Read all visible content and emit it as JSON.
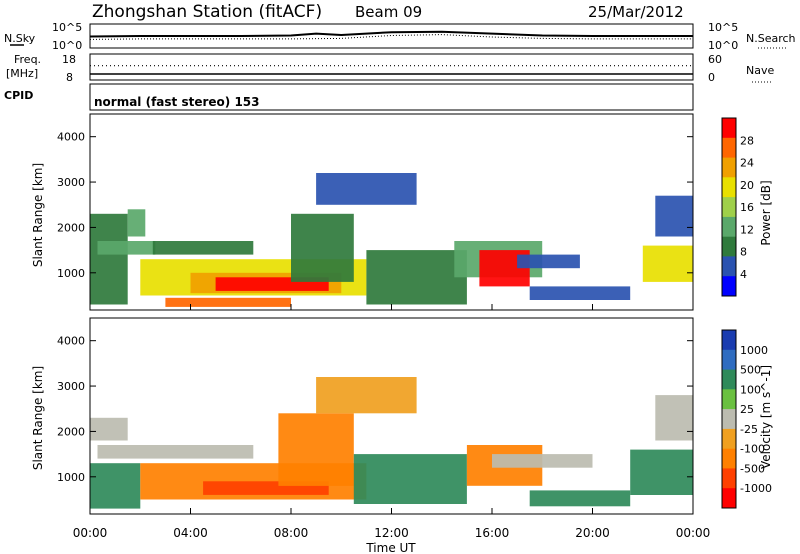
{
  "header": {
    "station": "Zhongshan Station (fitACF)",
    "beam": "Beam 09",
    "date": "25/Mar/2012"
  },
  "strip": {
    "nsky_label": "N.Sky",
    "nsky_max": "10^5",
    "nsky_min": "10^0",
    "nsearch_label": "N.Search",
    "freq_label_1": "Freq.",
    "freq_label_2": "[MHz]",
    "freq_max": "18",
    "freq_min": "8",
    "nave_max": "60",
    "nave_min": "0",
    "nave_label": "Nave",
    "cpid_label": "CPID",
    "cpid_text": "normal (fast stereo) 153"
  },
  "axes": {
    "xlabel": "Time UT",
    "xticks": [
      "00:00",
      "04:00",
      "08:00",
      "12:00",
      "16:00",
      "20:00",
      "00:00"
    ],
    "ylabel": "Slant Range [km]",
    "yticks": [
      "1000",
      "2000",
      "3000",
      "4000"
    ]
  },
  "colors": {
    "power": [
      "#0000ff",
      "#2a52b0",
      "#2f7a3c",
      "#5aa86a",
      "#9fd04a",
      "#e8e000",
      "#f0a000",
      "#ff6600",
      "#ff0000"
    ],
    "velocity": [
      "#1a3cb0",
      "#2f6cc0",
      "#2f8a5a",
      "#6ac040",
      "#bcbcb0",
      "#f0a020",
      "#ff8000",
      "#ff4000",
      "#ff0000"
    ]
  },
  "chart_data": [
    {
      "type": "line",
      "title": "N.Sky / N.Search",
      "x_range_hours": [
        0,
        24
      ],
      "y_log_range": [
        0,
        5
      ],
      "series": [
        {
          "name": "N.Sky",
          "x": [
            0,
            2,
            4,
            6,
            8,
            9,
            10,
            12,
            14,
            16,
            18,
            20,
            22,
            24
          ],
          "values": [
            2.4,
            2.5,
            2.5,
            2.5,
            2.6,
            3.0,
            2.7,
            3.3,
            3.4,
            3.0,
            2.6,
            2.5,
            2.5,
            2.5
          ]
        },
        {
          "name": "N.Search",
          "x": [
            0,
            2,
            4,
            6,
            8,
            10,
            12,
            14,
            16,
            18,
            20,
            22,
            24
          ],
          "values": [
            1.8,
            1.9,
            1.9,
            1.9,
            1.9,
            2.0,
            2.6,
            2.8,
            2.3,
            2.0,
            1.9,
            1.9,
            1.9
          ]
        }
      ]
    },
    {
      "type": "line",
      "title": "Freq. / Nave",
      "x_range_hours": [
        0,
        24
      ],
      "freq_range": [
        8,
        18
      ],
      "nave_range": [
        0,
        60
      ],
      "series": [
        {
          "name": "Freq.",
          "x": [
            0,
            24
          ],
          "values": [
            10.3,
            10.3
          ]
        },
        {
          "name": "Nave",
          "x": [
            0,
            24
          ],
          "values": [
            33,
            33
          ]
        }
      ]
    },
    {
      "type": "heatmap",
      "panel": "Power",
      "colorbar_label": "Power [dB]",
      "colorbar_ticks": [
        "4",
        "8",
        "12",
        "16",
        "20",
        "24",
        "28"
      ],
      "xlim_hours": [
        0,
        24
      ],
      "ylim_km": [
        180,
        4500
      ],
      "regions": [
        {
          "t0": 0.0,
          "t1": 1.5,
          "r0": 300,
          "r1": 2300,
          "v": 8
        },
        {
          "t0": 0.3,
          "t1": 2.6,
          "r0": 1400,
          "r1": 1700,
          "v": 12
        },
        {
          "t0": 1.5,
          "t1": 2.2,
          "r0": 1800,
          "r1": 2400,
          "v": 14
        },
        {
          "t0": 2.5,
          "t1": 6.5,
          "r0": 1400,
          "r1": 1700,
          "v": 8
        },
        {
          "t0": 2.0,
          "t1": 11.0,
          "r0": 500,
          "r1": 1300,
          "v": 18
        },
        {
          "t0": 4.0,
          "t1": 10.0,
          "r0": 550,
          "r1": 1000,
          "v": 24
        },
        {
          "t0": 5.0,
          "t1": 9.5,
          "r0": 600,
          "r1": 900,
          "v": 29
        },
        {
          "t0": 3.0,
          "t1": 8.0,
          "r0": 250,
          "r1": 450,
          "v": 28
        },
        {
          "t0": 8.0,
          "t1": 10.5,
          "r0": 800,
          "r1": 2300,
          "v": 10
        },
        {
          "t0": 9.0,
          "t1": 13.0,
          "r0": 2500,
          "r1": 3200,
          "v": 6
        },
        {
          "t0": 11.0,
          "t1": 15.0,
          "r0": 300,
          "r1": 1500,
          "v": 9
        },
        {
          "t0": 14.5,
          "t1": 18.0,
          "r0": 900,
          "r1": 1700,
          "v": 14
        },
        {
          "t0": 15.5,
          "t1": 17.5,
          "r0": 700,
          "r1": 1500,
          "v": 29
        },
        {
          "t0": 17.5,
          "t1": 21.5,
          "r0": 400,
          "r1": 700,
          "v": 6
        },
        {
          "t0": 17.0,
          "t1": 19.5,
          "r0": 1100,
          "r1": 1400,
          "v": 6
        },
        {
          "t0": 22.0,
          "t1": 24.0,
          "r0": 800,
          "r1": 1600,
          "v": 20
        },
        {
          "t0": 22.5,
          "t1": 24.0,
          "r0": 1800,
          "r1": 2700,
          "v": 6
        }
      ]
    },
    {
      "type": "heatmap",
      "panel": "Velocity",
      "colorbar_label": "Velocity [m s^-1]",
      "colorbar_ticks": [
        "1000",
        "500",
        "100",
        "25",
        "-25",
        "-100",
        "-500",
        "-1000"
      ],
      "xlim_hours": [
        0,
        24
      ],
      "ylim_km": [
        180,
        4500
      ],
      "regions": [
        {
          "t0": 0.0,
          "t1": 2.0,
          "r0": 300,
          "r1": 1300,
          "v": 300
        },
        {
          "t0": 0.3,
          "t1": 6.5,
          "r0": 1400,
          "r1": 1700,
          "v": 0
        },
        {
          "t0": 0.0,
          "t1": 1.5,
          "r0": 1800,
          "r1": 2300,
          "v": 0
        },
        {
          "t0": 2.0,
          "t1": 11.0,
          "r0": 500,
          "r1": 1300,
          "v": -300
        },
        {
          "t0": 4.5,
          "t1": 9.5,
          "r0": 600,
          "r1": 900,
          "v": -600
        },
        {
          "t0": 7.5,
          "t1": 10.5,
          "r0": 800,
          "r1": 2400,
          "v": -150
        },
        {
          "t0": 9.0,
          "t1": 13.0,
          "r0": 2400,
          "r1": 3200,
          "v": -100
        },
        {
          "t0": 10.5,
          "t1": 15.0,
          "r0": 400,
          "r1": 1500,
          "v": 100
        },
        {
          "t0": 15.0,
          "t1": 18.0,
          "r0": 800,
          "r1": 1700,
          "v": -300
        },
        {
          "t0": 16.0,
          "t1": 20.0,
          "r0": 1200,
          "r1": 1500,
          "v": 0
        },
        {
          "t0": 17.5,
          "t1": 21.5,
          "r0": 350,
          "r1": 700,
          "v": 200
        },
        {
          "t0": 21.5,
          "t1": 24.0,
          "r0": 600,
          "r1": 1600,
          "v": 300
        },
        {
          "t0": 22.5,
          "t1": 24.0,
          "r0": 1800,
          "r1": 2800,
          "v": 0
        }
      ]
    }
  ]
}
